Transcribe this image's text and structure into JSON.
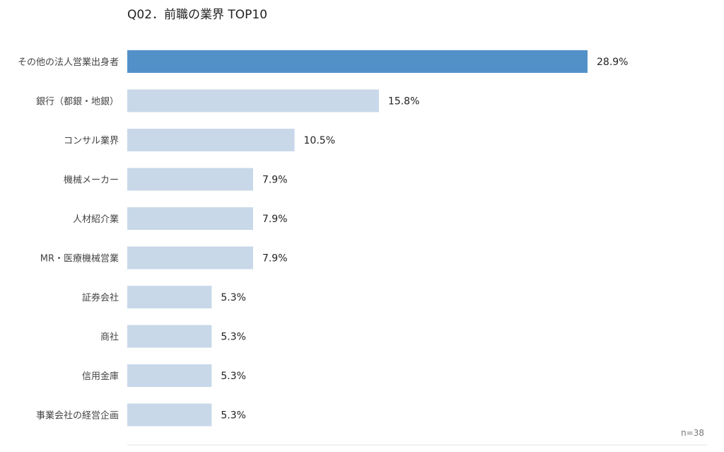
{
  "chart_data": {
    "type": "bar",
    "orientation": "horizontal",
    "title": "Q02．前職の業界 TOP10",
    "categories": [
      "その他の法人営業出身者",
      "銀行（都銀・地銀）",
      "コンサル業界",
      "機械メーカー",
      "人材紹介業",
      "MR・医療機械営業",
      "証券会社",
      "商社",
      "信用金庫",
      "事業会社の経営企画"
    ],
    "values": [
      28.9,
      15.8,
      10.5,
      7.9,
      7.9,
      7.9,
      5.3,
      5.3,
      5.3,
      5.3
    ],
    "value_labels": [
      "28.9%",
      "15.8%",
      "10.5%",
      "7.9%",
      "7.9%",
      "7.9%",
      "5.3%",
      "5.3%",
      "5.3%",
      "5.3%"
    ],
    "unit": "%",
    "xlim": [
      0,
      35
    ],
    "grid": false,
    "highlight_index": 0,
    "colors": {
      "highlight": "#5291c8",
      "default": "#c8d8e9",
      "axis": "#e6e6e6"
    },
    "note": "n=38"
  }
}
